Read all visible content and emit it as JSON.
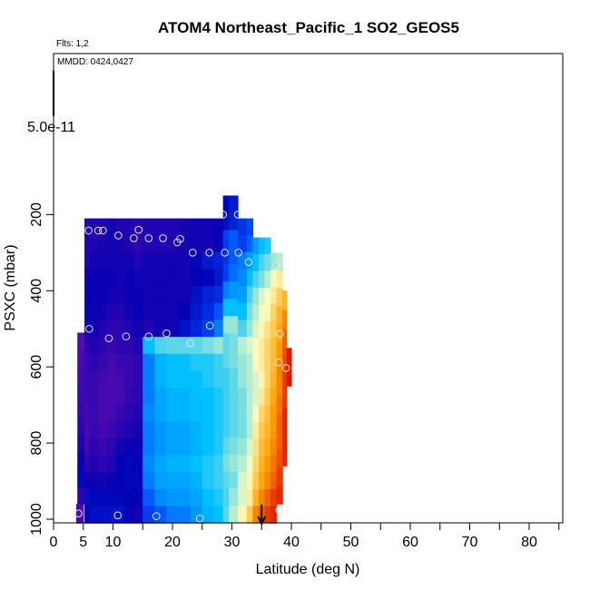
{
  "chart_data": {
    "type": "heatmap",
    "title": "ATOM4 Northeast_Pacific_1 SO2_GEOS5",
    "flights_label": "Flts: 1,2",
    "dates_label": "MMDD: 0424,0427",
    "xlabel": "Latitude (deg N)",
    "ylabel": "PSXC (mbar)",
    "scale_label": "5.0e-11",
    "xlim": [
      0,
      86
    ],
    "ylim": [
      1010,
      0
    ],
    "x_ticks": [
      0,
      5,
      10,
      20,
      30,
      40,
      50,
      60,
      70,
      80
    ],
    "x_minor_ticks": [
      15,
      25,
      35,
      45,
      55,
      65,
      75,
      85
    ],
    "y_ticks": [
      200,
      400,
      600,
      800,
      1000
    ],
    "colormap": [
      "#6a0dad",
      "#0000b4",
      "#0050ff",
      "#00c0ff",
      "#ffffc0",
      "#ffa000",
      "#e00000"
    ],
    "value_range": [
      0,
      1
    ],
    "grid": false,
    "legend": "none",
    "columns": [
      {
        "x": [
          3.8,
          5.0
        ],
        "y": [
          960,
          1010
        ],
        "v": [
          0.05
        ]
      },
      {
        "x": [
          4.0,
          5.2
        ],
        "y": [
          510,
          960
        ],
        "v": [
          0.04,
          0.05,
          0.06,
          0.07,
          0.08,
          0.1,
          0.12,
          0.15,
          0.18,
          0.1
        ]
      },
      {
        "x": [
          5.2,
          6.0
        ],
        "y": [
          210,
          1010
        ],
        "v": [
          0.1,
          0.12,
          0.12,
          0.15,
          0.15,
          0.18,
          0.15,
          0.1,
          0.08,
          0.08,
          0.07,
          0.06,
          0.05,
          0.06,
          0.1,
          0.15,
          0.2,
          0.18
        ]
      },
      {
        "x": [
          6.0,
          7.5
        ],
        "y": [
          210,
          1010
        ],
        "v": [
          0.12,
          0.12,
          0.14,
          0.15,
          0.15,
          0.15,
          0.14,
          0.12,
          0.1,
          0.08,
          0.08,
          0.08,
          0.08,
          0.1,
          0.12,
          0.15,
          0.18,
          0.2
        ]
      },
      {
        "x": [
          7.5,
          9.0
        ],
        "y": [
          210,
          1010
        ],
        "v": [
          0.12,
          0.13,
          0.14,
          0.15,
          0.15,
          0.14,
          0.12,
          0.1,
          0.08,
          0.06,
          0.05,
          0.05,
          0.06,
          0.08,
          0.1,
          0.14,
          0.18,
          0.2
        ]
      },
      {
        "x": [
          9.0,
          10.5
        ],
        "y": [
          210,
          1010
        ],
        "v": [
          0.14,
          0.14,
          0.14,
          0.15,
          0.14,
          0.12,
          0.1,
          0.08,
          0.06,
          0.05,
          0.05,
          0.06,
          0.08,
          0.1,
          0.12,
          0.15,
          0.18,
          0.2
        ]
      },
      {
        "x": [
          10.5,
          12.0
        ],
        "y": [
          210,
          1010
        ],
        "v": [
          0.12,
          0.13,
          0.14,
          0.14,
          0.13,
          0.12,
          0.1,
          0.1,
          0.08,
          0.06,
          0.06,
          0.08,
          0.1,
          0.14,
          0.16,
          0.16,
          0.18,
          0.2
        ]
      },
      {
        "x": [
          12.0,
          13.5
        ],
        "y": [
          210,
          1010
        ],
        "v": [
          0.12,
          0.12,
          0.14,
          0.15,
          0.15,
          0.14,
          0.12,
          0.1,
          0.08,
          0.08,
          0.09,
          0.1,
          0.12,
          0.15,
          0.18,
          0.18,
          0.16,
          0.15
        ]
      },
      {
        "x": [
          13.5,
          15.0
        ],
        "y": [
          210,
          1010
        ],
        "v": [
          0.1,
          0.1,
          0.12,
          0.14,
          0.15,
          0.16,
          0.14,
          0.12,
          0.1,
          0.1,
          0.1,
          0.12,
          0.14,
          0.15,
          0.17,
          0.18,
          0.16,
          0.14
        ]
      },
      {
        "x": [
          15.0,
          17.0
        ],
        "y": [
          210,
          1010
        ],
        "v": [
          0.12,
          0.12,
          0.14,
          0.14,
          0.14,
          0.14,
          0.12,
          0.5,
          0.4,
          0.4,
          0.4,
          0.42,
          0.4,
          0.4,
          0.42,
          0.4,
          0.35,
          0.3
        ]
      },
      {
        "x": [
          17.0,
          19.0
        ],
        "y": [
          210,
          1010
        ],
        "v": [
          0.12,
          0.12,
          0.14,
          0.14,
          0.14,
          0.14,
          0.14,
          0.55,
          0.48,
          0.48,
          0.46,
          0.46,
          0.44,
          0.44,
          0.46,
          0.45,
          0.42,
          0.35
        ]
      },
      {
        "x": [
          19.0,
          21.0
        ],
        "y": [
          210,
          1010
        ],
        "v": [
          0.12,
          0.12,
          0.14,
          0.14,
          0.14,
          0.14,
          0.14,
          0.56,
          0.5,
          0.5,
          0.48,
          0.48,
          0.46,
          0.46,
          0.48,
          0.46,
          0.44,
          0.4
        ]
      },
      {
        "x": [
          21.0,
          23.0
        ],
        "y": [
          210,
          1010
        ],
        "v": [
          0.13,
          0.13,
          0.14,
          0.14,
          0.14,
          0.16,
          0.2,
          0.56,
          0.5,
          0.5,
          0.48,
          0.48,
          0.46,
          0.46,
          0.48,
          0.46,
          0.44,
          0.4
        ]
      },
      {
        "x": [
          23.0,
          25.0
        ],
        "y": [
          210,
          1010
        ],
        "v": [
          0.14,
          0.14,
          0.18,
          0.16,
          0.2,
          0.22,
          0.25,
          0.56,
          0.52,
          0.5,
          0.5,
          0.5,
          0.48,
          0.48,
          0.5,
          0.48,
          0.46,
          0.44
        ]
      },
      {
        "x": [
          25.0,
          27.0
        ],
        "y": [
          210,
          1010
        ],
        "v": [
          0.14,
          0.14,
          0.22,
          0.18,
          0.24,
          0.26,
          0.3,
          0.58,
          0.52,
          0.52,
          0.5,
          0.5,
          0.5,
          0.5,
          0.52,
          0.52,
          0.5,
          0.48
        ]
      },
      {
        "x": [
          27.0,
          28.5
        ],
        "y": [
          210,
          1010
        ],
        "v": [
          0.15,
          0.16,
          0.24,
          0.22,
          0.26,
          0.34,
          0.4,
          0.6,
          0.54,
          0.54,
          0.52,
          0.52,
          0.52,
          0.52,
          0.54,
          0.54,
          0.52,
          0.5
        ]
      },
      {
        "x": [
          28.5,
          29.5
        ],
        "y": [
          150,
          1010
        ],
        "v": [
          0.18,
          0.2,
          0.3,
          0.28,
          0.3,
          0.4,
          0.5,
          0.6,
          0.56,
          0.56,
          0.54,
          0.54,
          0.54,
          0.54,
          0.56,
          0.58,
          0.56,
          0.55,
          0.56
        ]
      },
      {
        "x": [
          29.5,
          31.0
        ],
        "y": [
          150,
          1010
        ],
        "v": [
          0.22,
          0.24,
          0.35,
          0.35,
          0.38,
          0.44,
          0.5,
          0.6,
          0.58,
          0.58,
          0.56,
          0.56,
          0.56,
          0.56,
          0.58,
          0.6,
          0.58,
          0.6,
          0.62
        ]
      },
      {
        "x": [
          31.0,
          32.5
        ],
        "y": [
          210,
          1010
        ],
        "v": [
          0.28,
          0.3,
          0.4,
          0.42,
          0.45,
          0.5,
          0.55,
          0.62,
          0.6,
          0.6,
          0.58,
          0.58,
          0.58,
          0.6,
          0.62,
          0.64,
          0.64,
          0.68
        ]
      },
      {
        "x": [
          32.5,
          33.5
        ],
        "y": [
          210,
          1010
        ],
        "v": [
          0.32,
          0.36,
          0.45,
          0.5,
          0.55,
          0.58,
          0.6,
          0.64,
          0.62,
          0.62,
          0.62,
          0.62,
          0.62,
          0.64,
          0.66,
          0.68,
          0.7,
          0.76
        ]
      },
      {
        "x": [
          33.5,
          34.5
        ],
        "y": [
          260,
          1010
        ],
        "v": [
          0.45,
          0.5,
          0.55,
          0.6,
          0.62,
          0.64,
          0.66,
          0.66,
          0.64,
          0.64,
          0.66,
          0.7,
          0.72,
          0.74,
          0.76,
          0.8,
          0.86
        ]
      },
      {
        "x": [
          34.5,
          35.5
        ],
        "y": [
          260,
          1010
        ],
        "v": [
          0.5,
          0.55,
          0.58,
          0.64,
          0.66,
          0.68,
          0.7,
          0.7,
          0.68,
          0.7,
          0.74,
          0.76,
          0.78,
          0.8,
          0.82,
          0.86,
          0.9
        ]
      },
      {
        "x": [
          35.5,
          36.5
        ],
        "y": [
          260,
          1010
        ],
        "v": [
          0.52,
          0.58,
          0.62,
          0.66,
          0.68,
          0.72,
          0.74,
          0.74,
          0.74,
          0.76,
          0.78,
          0.8,
          0.82,
          0.84,
          0.86,
          0.9,
          0.94
        ]
      },
      {
        "x": [
          36.5,
          37.5
        ],
        "y": [
          300,
          1010
        ],
        "v": [
          0.6,
          0.66,
          0.7,
          0.74,
          0.76,
          0.78,
          0.78,
          0.8,
          0.82,
          0.84,
          0.84,
          0.86,
          0.88,
          0.9,
          0.94,
          0.96
        ]
      },
      {
        "x": [
          37.5,
          38.5
        ],
        "y": [
          300,
          960
        ],
        "v": [
          0.62,
          0.7,
          0.76,
          0.8,
          0.82,
          0.84,
          0.86,
          0.86,
          0.88,
          0.9,
          0.9,
          0.92,
          0.94,
          0.96
        ]
      },
      {
        "x": [
          38.5,
          39.2
        ],
        "y": [
          400,
          860
        ],
        "v": [
          0.8,
          0.86,
          0.9,
          0.92,
          0.94,
          0.94,
          0.96,
          0.96,
          0.96
        ]
      },
      {
        "x": [
          39.2,
          40.0
        ],
        "y": [
          550,
          650
        ],
        "v": [
          0.98,
          0.98
        ]
      }
    ],
    "obs_points": [
      [
        4.2,
        985
      ],
      [
        6.0,
        500
      ],
      [
        5.9,
        242
      ],
      [
        7.5,
        242
      ],
      [
        8.3,
        242
      ],
      [
        9.3,
        525
      ],
      [
        10.8,
        990
      ],
      [
        10.9,
        255
      ],
      [
        12.2,
        520
      ],
      [
        13.5,
        262
      ],
      [
        14.3,
        240
      ],
      [
        16.0,
        520
      ],
      [
        16.0,
        262
      ],
      [
        17.3,
        992
      ],
      [
        18.4,
        262
      ],
      [
        19.0,
        512
      ],
      [
        20.8,
        273
      ],
      [
        21.3,
        264
      ],
      [
        23.0,
        538
      ],
      [
        23.4,
        300
      ],
      [
        24.6,
        998
      ],
      [
        26.2,
        300
      ],
      [
        26.3,
        492
      ],
      [
        28.5,
        200
      ],
      [
        28.8,
        300
      ],
      [
        31.0,
        200
      ],
      [
        31.1,
        300
      ],
      [
        32.8,
        325
      ],
      [
        37.5,
        332
      ],
      [
        37.9,
        588
      ],
      [
        38.1,
        513
      ],
      [
        38.0,
        976
      ],
      [
        39.1,
        603
      ]
    ],
    "arrow_lat": 35
  }
}
